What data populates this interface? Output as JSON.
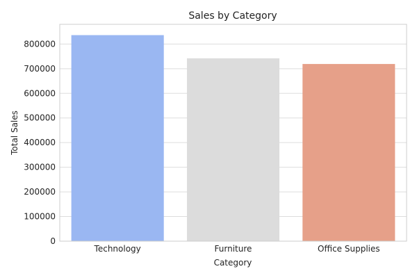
{
  "chart_data": {
    "type": "bar",
    "title": "Sales by Category",
    "xlabel": "Category",
    "ylabel": "Total Sales",
    "categories": [
      "Technology",
      "Furniture",
      "Office Supplies"
    ],
    "values": [
      836154,
      741999,
      719047
    ],
    "colors": [
      "#9AB7F2",
      "#DCDCDC",
      "#E6A089"
    ],
    "ylim": [
      0,
      880000
    ],
    "yticks": [
      0,
      100000,
      200000,
      300000,
      400000,
      500000,
      600000,
      700000,
      800000
    ],
    "grid": "y"
  }
}
